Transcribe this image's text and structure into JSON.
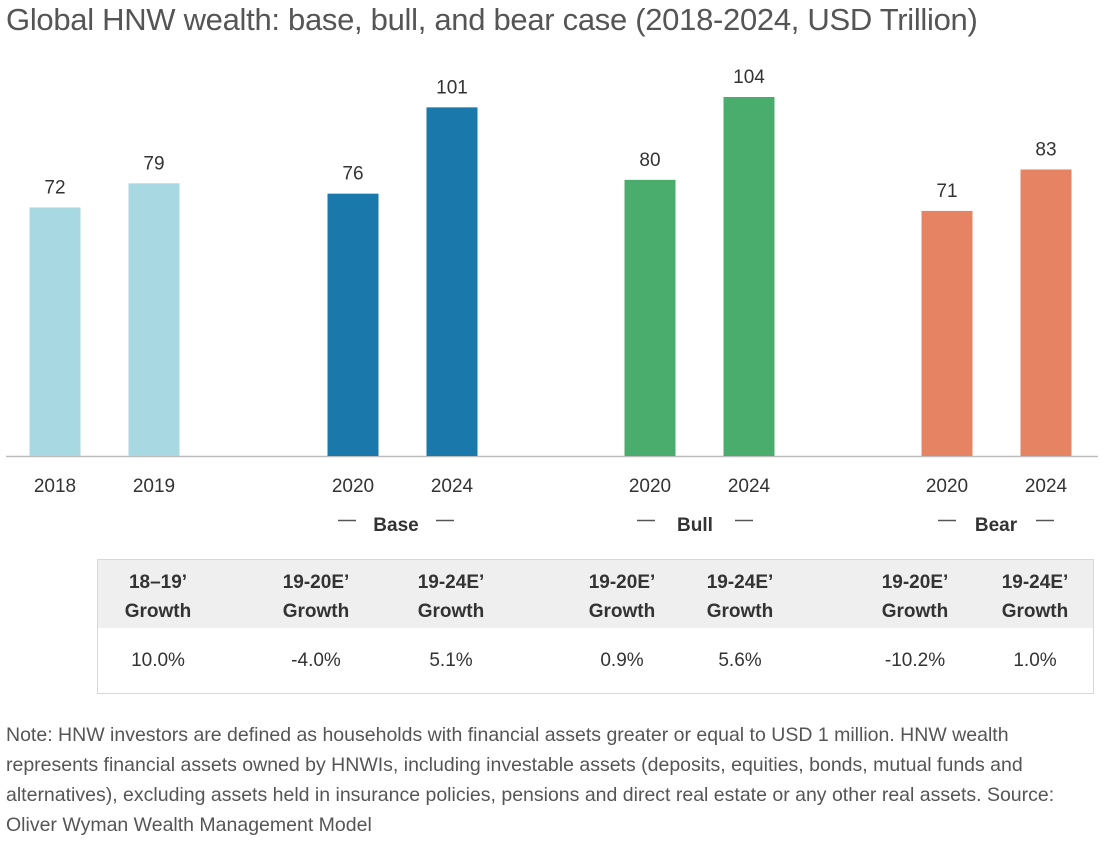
{
  "title": "Global HNW wealth: base, bull, and bear case (2018-2024, USD Trillion)",
  "chart_data": {
    "type": "bar",
    "title": "Global HNW wealth: base, bull, and bear case (2018-2024, USD Trillion)",
    "ylim": [
      0,
      104
    ],
    "grid": false,
    "groups": [
      {
        "name": "",
        "bars": [
          {
            "category": "2018",
            "value": 72,
            "label": "72",
            "color": "#a8d8e2"
          },
          {
            "category": "2019",
            "value": 79,
            "label": "79",
            "color": "#a8d8e2"
          }
        ]
      },
      {
        "name": "Base",
        "bars": [
          {
            "category": "2020",
            "value": 76,
            "label": "76",
            "color": "#1a78ab"
          },
          {
            "category": "2024",
            "value": 101,
            "label": "101",
            "color": "#1a78ab"
          }
        ]
      },
      {
        "name": "Bull",
        "bars": [
          {
            "category": "2020",
            "value": 80,
            "label": "80",
            "color": "#4aad6e"
          },
          {
            "category": "2024",
            "value": 104,
            "label": "104",
            "color": "#4aad6e"
          }
        ]
      },
      {
        "name": "Bear",
        "bars": [
          {
            "category": "2020",
            "value": 71,
            "label": "71",
            "color": "#e58363"
          },
          {
            "category": "2024",
            "value": 83,
            "label": "83",
            "color": "#e58363"
          }
        ]
      }
    ]
  },
  "table": {
    "columns": [
      {
        "header_line1": "18–19’",
        "header_line2": "Growth",
        "value": "10.0%"
      },
      {
        "header_line1": "19-20E’",
        "header_line2": "Growth",
        "value": "-4.0%"
      },
      {
        "header_line1": "19-24E’",
        "header_line2": "Growth",
        "value": "5.1%"
      },
      {
        "header_line1": "19-20E’",
        "header_line2": "Growth",
        "value": "0.9%"
      },
      {
        "header_line1": "19-24E’",
        "header_line2": "Growth",
        "value": "5.6%"
      },
      {
        "header_line1": "19-20E’",
        "header_line2": "Growth",
        "value": "-10.2%"
      },
      {
        "header_line1": "19-24E’",
        "header_line2": "Growth",
        "value": "1.0%"
      }
    ]
  },
  "note": "Note: HNW investors are defined as households with financial assets greater or equal to USD 1 million. HNW wealth represents financial assets owned by HNWIs, including investable assets (deposits, equities, bonds, mutual funds and alternatives), excluding assets held in insurance policies, pensions and direct real estate or any other real assets. Source: Oliver Wyman Wealth Management Model"
}
